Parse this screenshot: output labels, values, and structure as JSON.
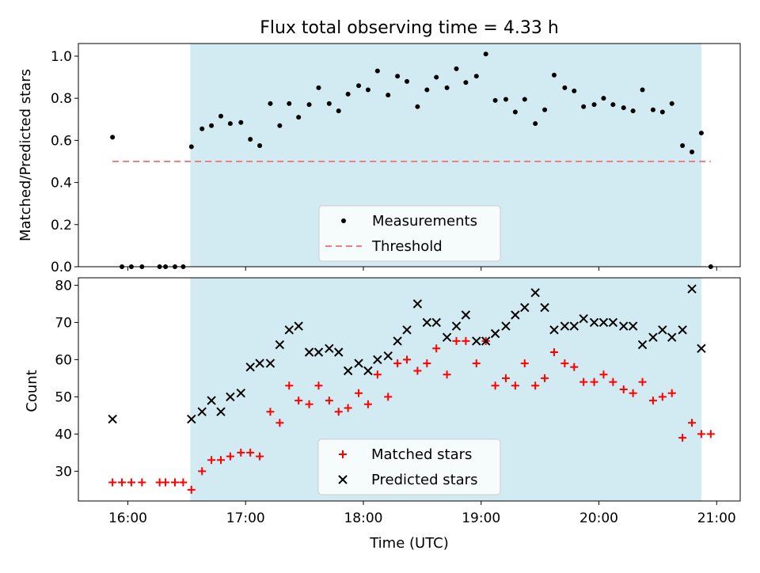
{
  "figure": {
    "title": "Flux total observing time = 4.33 h"
  },
  "colors": {
    "shade": "#add8e6",
    "measurement": "#000000",
    "threshold": "#f08080",
    "matched": "#ff0000",
    "predicted": "#000000"
  },
  "chart_data": [
    {
      "type": "scatter",
      "panel": "top",
      "title": "Flux total observing time = 4.33 h",
      "ylabel": "Matched/Predicted stars",
      "xlabel": "",
      "x_unit": "hours UTC",
      "xlim": [
        15.58,
        21.2
      ],
      "ylim": [
        0.0,
        1.06
      ],
      "yticks": [
        0.0,
        0.2,
        0.4,
        0.6,
        0.8,
        1.0
      ],
      "ytick_labels": [
        "0.0",
        "0.2",
        "0.4",
        "0.6",
        "0.8",
        "1.0"
      ],
      "xticks": [
        16,
        17,
        18,
        19,
        20,
        21
      ],
      "shaded_region": [
        16.53,
        20.87
      ],
      "legend": {
        "placement": "lower center",
        "entries": [
          "Measurements",
          "Threshold"
        ]
      },
      "threshold": {
        "name": "Threshold",
        "x": [
          15.87,
          20.95
        ],
        "y": 0.5
      },
      "series": [
        {
          "name": "Measurements",
          "points": [
            [
              15.87,
              0.615
            ],
            [
              15.95,
              0.0
            ],
            [
              16.03,
              0.0
            ],
            [
              16.12,
              0.0
            ],
            [
              16.27,
              0.0
            ],
            [
              16.32,
              0.0
            ],
            [
              16.4,
              0.0
            ],
            [
              16.47,
              0.0
            ],
            [
              16.54,
              0.57
            ],
            [
              16.63,
              0.655
            ],
            [
              16.71,
              0.67
            ],
            [
              16.79,
              0.715
            ],
            [
              16.87,
              0.68
            ],
            [
              16.96,
              0.685
            ],
            [
              17.04,
              0.605
            ],
            [
              17.12,
              0.575
            ],
            [
              17.21,
              0.775
            ],
            [
              17.29,
              0.67
            ],
            [
              17.37,
              0.775
            ],
            [
              17.45,
              0.71
            ],
            [
              17.54,
              0.77
            ],
            [
              17.62,
              0.85
            ],
            [
              17.71,
              0.775
            ],
            [
              17.79,
              0.74
            ],
            [
              17.87,
              0.82
            ],
            [
              17.96,
              0.86
            ],
            [
              18.04,
              0.84
            ],
            [
              18.12,
              0.93
            ],
            [
              18.21,
              0.815
            ],
            [
              18.29,
              0.905
            ],
            [
              18.37,
              0.88
            ],
            [
              18.46,
              0.76
            ],
            [
              18.54,
              0.84
            ],
            [
              18.62,
              0.9
            ],
            [
              18.71,
              0.85
            ],
            [
              18.79,
              0.94
            ],
            [
              18.87,
              0.875
            ],
            [
              18.96,
              0.905
            ],
            [
              19.04,
              1.01
            ],
            [
              19.12,
              0.79
            ],
            [
              19.21,
              0.795
            ],
            [
              19.29,
              0.735
            ],
            [
              19.37,
              0.795
            ],
            [
              19.46,
              0.68
            ],
            [
              19.54,
              0.745
            ],
            [
              19.62,
              0.91
            ],
            [
              19.71,
              0.85
            ],
            [
              19.79,
              0.835
            ],
            [
              19.87,
              0.76
            ],
            [
              19.96,
              0.77
            ],
            [
              20.04,
              0.8
            ],
            [
              20.12,
              0.77
            ],
            [
              20.21,
              0.755
            ],
            [
              20.29,
              0.74
            ],
            [
              20.37,
              0.84
            ],
            [
              20.46,
              0.745
            ],
            [
              20.54,
              0.735
            ],
            [
              20.62,
              0.775
            ],
            [
              20.71,
              0.575
            ],
            [
              20.79,
              0.545
            ],
            [
              20.87,
              0.635
            ],
            [
              20.95,
              0.0
            ]
          ]
        }
      ]
    },
    {
      "type": "scatter",
      "panel": "bottom",
      "title": "",
      "ylabel": "Count",
      "xlabel": "Time (UTC)",
      "x_unit": "hours UTC",
      "xlim": [
        15.58,
        21.2
      ],
      "ylim": [
        22,
        82
      ],
      "yticks": [
        30,
        40,
        50,
        60,
        70,
        80
      ],
      "ytick_labels": [
        "30",
        "40",
        "50",
        "60",
        "70",
        "80"
      ],
      "xticks": [
        16,
        17,
        18,
        19,
        20,
        21
      ],
      "xtick_labels": [
        "16:00",
        "17:00",
        "18:00",
        "19:00",
        "20:00",
        "21:00"
      ],
      "shaded_region": [
        16.53,
        20.87
      ],
      "legend": {
        "placement": "lower center",
        "entries": [
          "Matched stars",
          "Predicted stars"
        ]
      },
      "series": [
        {
          "name": "Matched stars",
          "marker": "+",
          "points": [
            [
              15.87,
              27
            ],
            [
              15.95,
              27
            ],
            [
              16.03,
              27
            ],
            [
              16.12,
              27
            ],
            [
              16.27,
              27
            ],
            [
              16.32,
              27
            ],
            [
              16.4,
              27
            ],
            [
              16.47,
              27
            ],
            [
              16.54,
              25
            ],
            [
              16.63,
              30
            ],
            [
              16.71,
              33
            ],
            [
              16.79,
              33
            ],
            [
              16.87,
              34
            ],
            [
              16.96,
              35
            ],
            [
              17.04,
              35
            ],
            [
              17.12,
              34
            ],
            [
              17.21,
              46
            ],
            [
              17.29,
              43
            ],
            [
              17.37,
              53
            ],
            [
              17.45,
              49
            ],
            [
              17.54,
              48
            ],
            [
              17.62,
              53
            ],
            [
              17.71,
              49
            ],
            [
              17.79,
              46
            ],
            [
              17.87,
              47
            ],
            [
              17.96,
              51
            ],
            [
              18.04,
              48
            ],
            [
              18.12,
              56
            ],
            [
              18.21,
              50
            ],
            [
              18.29,
              59
            ],
            [
              18.37,
              60
            ],
            [
              18.46,
              57
            ],
            [
              18.54,
              59
            ],
            [
              18.62,
              63
            ],
            [
              18.71,
              56
            ],
            [
              18.79,
              65
            ],
            [
              18.87,
              65
            ],
            [
              18.96,
              59
            ],
            [
              19.04,
              65
            ],
            [
              19.12,
              53
            ],
            [
              19.21,
              55
            ],
            [
              19.29,
              53
            ],
            [
              19.37,
              59
            ],
            [
              19.46,
              53
            ],
            [
              19.54,
              55
            ],
            [
              19.62,
              62
            ],
            [
              19.71,
              59
            ],
            [
              19.79,
              58
            ],
            [
              19.87,
              54
            ],
            [
              19.96,
              54
            ],
            [
              20.04,
              56
            ],
            [
              20.12,
              54
            ],
            [
              20.21,
              52
            ],
            [
              20.29,
              51
            ],
            [
              20.37,
              54
            ],
            [
              20.46,
              49
            ],
            [
              20.54,
              50
            ],
            [
              20.62,
              51
            ],
            [
              20.71,
              39
            ],
            [
              20.79,
              43
            ],
            [
              20.87,
              40
            ],
            [
              20.95,
              40
            ]
          ]
        },
        {
          "name": "Predicted stars",
          "marker": "x",
          "points": [
            [
              15.87,
              44
            ],
            [
              16.54,
              44
            ],
            [
              16.63,
              46
            ],
            [
              16.71,
              49
            ],
            [
              16.79,
              46
            ],
            [
              16.87,
              50
            ],
            [
              16.96,
              51
            ],
            [
              17.04,
              58
            ],
            [
              17.12,
              59
            ],
            [
              17.21,
              59
            ],
            [
              17.29,
              64
            ],
            [
              17.37,
              68
            ],
            [
              17.45,
              69
            ],
            [
              17.54,
              62
            ],
            [
              17.62,
              62
            ],
            [
              17.71,
              63
            ],
            [
              17.79,
              62
            ],
            [
              17.87,
              57
            ],
            [
              17.96,
              59
            ],
            [
              18.04,
              57
            ],
            [
              18.12,
              60
            ],
            [
              18.21,
              61
            ],
            [
              18.29,
              65
            ],
            [
              18.37,
              68
            ],
            [
              18.46,
              75
            ],
            [
              18.54,
              70
            ],
            [
              18.62,
              70
            ],
            [
              18.71,
              66
            ],
            [
              18.79,
              69
            ],
            [
              18.87,
              72
            ],
            [
              18.96,
              65
            ],
            [
              19.04,
              65
            ],
            [
              19.12,
              67
            ],
            [
              19.21,
              69
            ],
            [
              19.29,
              72
            ],
            [
              19.37,
              74
            ],
            [
              19.46,
              78
            ],
            [
              19.54,
              74
            ],
            [
              19.62,
              68
            ],
            [
              19.71,
              69
            ],
            [
              19.79,
              69
            ],
            [
              19.87,
              71
            ],
            [
              19.96,
              70
            ],
            [
              20.04,
              70
            ],
            [
              20.12,
              70
            ],
            [
              20.21,
              69
            ],
            [
              20.29,
              69
            ],
            [
              20.37,
              64
            ],
            [
              20.46,
              66
            ],
            [
              20.54,
              68
            ],
            [
              20.62,
              66
            ],
            [
              20.71,
              68
            ],
            [
              20.79,
              79
            ],
            [
              20.87,
              63
            ]
          ]
        }
      ]
    }
  ]
}
